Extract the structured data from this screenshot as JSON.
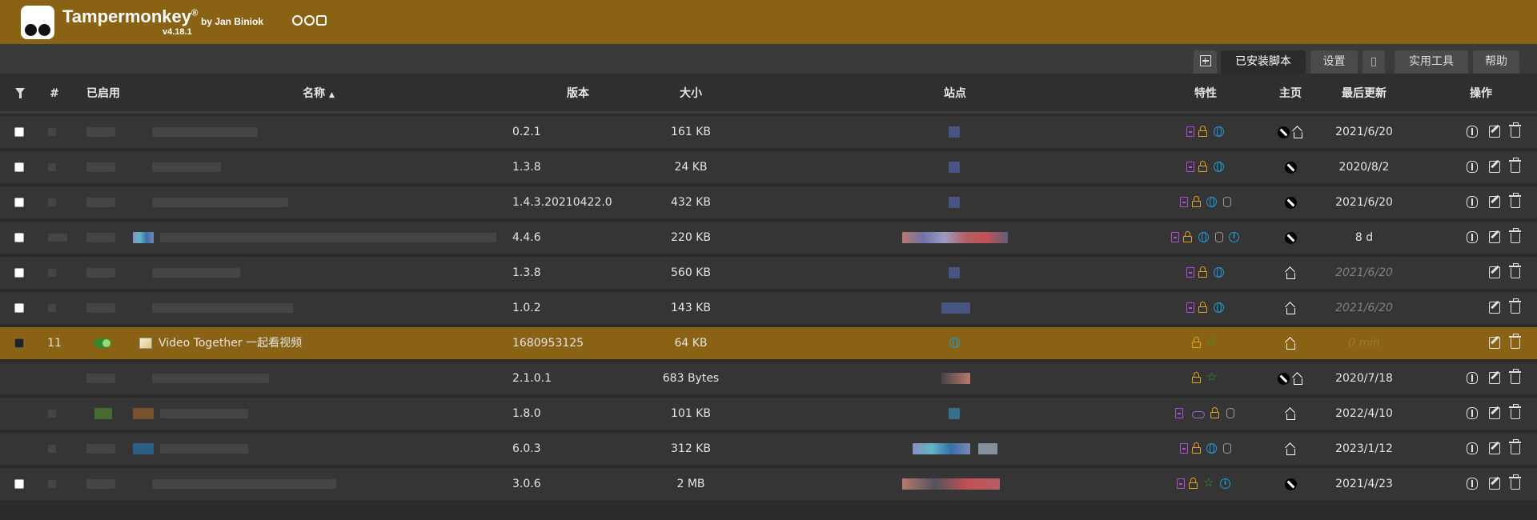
{
  "header": {
    "app_name": "Tampermonkey",
    "trademark": "®",
    "author": "by Jan Biniok",
    "version": "v4.18.1",
    "social_icons": [
      "github-icon",
      "facebook-icon",
      "instagram-icon"
    ],
    "brand_color": "#8a6214"
  },
  "tabs": [
    {
      "label": "已安装脚本",
      "active": true
    },
    {
      "label": "设置",
      "active": false
    },
    {
      "label": "",
      "icon": "trash-icon",
      "active": false
    },
    {
      "label": "实用工具",
      "active": false
    },
    {
      "label": "帮助",
      "active": false
    }
  ],
  "table": {
    "columns": {
      "index": "#",
      "enabled": "已启用",
      "name": "名称",
      "version": "版本",
      "size": "大小",
      "sites": "站点",
      "features": "特性",
      "homepage": "主页",
      "last_updated": "最后更新",
      "actions": "操作"
    },
    "sort_indicator": "▲",
    "rows": [
      {
        "version": "0.2.1",
        "size": "161 KB",
        "updated": "2021/6/20",
        "features": [
          "file-icon",
          "lock-icon",
          "globe-icon"
        ],
        "homepage": [
          "wrench-icon",
          "home-icon"
        ],
        "actions": [
          "bug-icon",
          "edit-icon",
          "trash-icon"
        ]
      },
      {
        "version": "1.3.8",
        "size": "24 KB",
        "updated": "2020/8/2",
        "features": [
          "file-icon",
          "lock-icon",
          "globe-icon"
        ],
        "homepage": [
          "wrench-icon"
        ],
        "actions": [
          "bug-icon",
          "edit-icon",
          "trash-icon"
        ]
      },
      {
        "version": "1.4.3.20210422.0",
        "size": "432 KB",
        "updated": "2021/6/20",
        "features": [
          "file-icon",
          "lock-icon",
          "globe-icon",
          "database-icon"
        ],
        "homepage": [
          "wrench-icon"
        ],
        "actions": [
          "bug-icon",
          "edit-icon",
          "trash-icon"
        ]
      },
      {
        "version": "4.4.6",
        "size": "220 KB",
        "updated": "8 d",
        "features": [
          "file-icon",
          "lock-icon",
          "globe-icon",
          "database-icon",
          "info-icon"
        ],
        "homepage": [
          "wrench-icon"
        ],
        "actions": [
          "bug-icon",
          "edit-icon",
          "trash-icon"
        ]
      },
      {
        "version": "1.3.8",
        "size": "560 KB",
        "updated": "2021/6/20",
        "features": [
          "file-icon",
          "lock-icon",
          "globe-icon"
        ],
        "homepage": [
          "home-icon"
        ],
        "actions": [
          "edit-icon",
          "trash-icon"
        ]
      },
      {
        "version": "1.0.2",
        "size": "143 KB",
        "updated": "2021/6/20",
        "features": [
          "file-icon",
          "lock-icon",
          "globe-icon"
        ],
        "homepage": [
          "home-icon"
        ],
        "actions": [
          "edit-icon",
          "trash-icon"
        ]
      },
      {
        "index": "11",
        "name": "Video Together 一起看视频",
        "version": "1680953125",
        "size": "64 KB",
        "updated": "0 min",
        "features": [
          "lock-icon",
          "star-icon"
        ],
        "homepage": [
          "home-icon"
        ],
        "actions": [
          "edit-icon",
          "trash-icon"
        ],
        "selected": true
      },
      {
        "version": "2.1.0.1",
        "size": "683 Bytes",
        "updated": "2020/7/18",
        "features": [
          "lock-icon",
          "star-icon"
        ],
        "homepage": [
          "wrench-icon",
          "home-icon"
        ],
        "actions": [
          "bug-icon",
          "edit-icon",
          "trash-icon"
        ]
      },
      {
        "version": "1.8.0",
        "size": "101 KB",
        "updated": "2022/4/10",
        "features": [
          "file-icon",
          "cloud-icon",
          "lock-icon",
          "database-icon"
        ],
        "homepage": [
          "home-icon"
        ],
        "actions": [
          "bug-icon",
          "edit-icon",
          "trash-icon"
        ]
      },
      {
        "version": "6.0.3",
        "size": "312 KB",
        "updated": "2023/1/12",
        "features": [
          "file-icon",
          "lock-icon",
          "globe-icon",
          "database-icon"
        ],
        "homepage": [
          "home-icon"
        ],
        "actions": [
          "bug-icon",
          "edit-icon",
          "trash-icon"
        ]
      },
      {
        "version": "3.0.6",
        "size": "2 MB",
        "updated": "2021/4/23",
        "features": [
          "file-icon",
          "lock-icon",
          "star-icon",
          "info-icon"
        ],
        "homepage": [
          "wrench-icon"
        ],
        "actions": [
          "bug-icon",
          "edit-icon",
          "trash-icon"
        ]
      }
    ]
  }
}
